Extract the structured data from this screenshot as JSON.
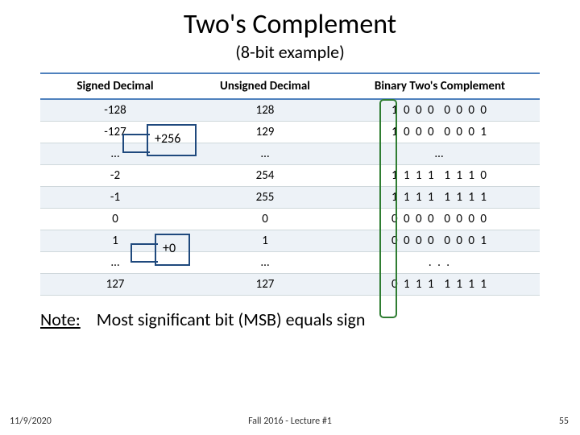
{
  "title": "Two's Complement",
  "subtitle": "(8-bit example)",
  "columns": [
    "Signed Decimal",
    "Unsigned Decimal",
    "Binary Two's Complement"
  ],
  "rows": [
    {
      "signed": "-128",
      "unsigned": "128",
      "binary": "1 0 0 0  0 0 0 0",
      "band": true
    },
    {
      "signed": "-127",
      "unsigned": "129",
      "binary": "1 0 0 0  0 0 0 1",
      "band": false
    },
    {
      "signed": "…",
      "unsigned": "…",
      "binary": "…",
      "band": true
    },
    {
      "signed": "-2",
      "unsigned": "254",
      "binary": "1 1 1 1  1 1 1 0",
      "band": false
    },
    {
      "signed": "-1",
      "unsigned": "255",
      "binary": "1 1 1 1  1 1 1 1",
      "band": true
    },
    {
      "signed": "0",
      "unsigned": "0",
      "binary": "0 0 0 0  0 0 0 0",
      "band": false
    },
    {
      "signed": "1",
      "unsigned": "1",
      "binary": "0 0 0 0  0 0 0 1",
      "band": true
    },
    {
      "signed": "…",
      "unsigned": "…",
      "binary": ". . .",
      "band": false
    },
    {
      "signed": "127",
      "unsigned": "127",
      "binary": "0 1 1 1  1 1 1 1",
      "band": true
    }
  ],
  "annotations": {
    "offset_neg": "+256",
    "offset_pos": "+0"
  },
  "note": {
    "label": "Note:",
    "text": "Most significant bit (MSB) equals sign"
  },
  "footer": {
    "date": "11/9/2020",
    "center": "Fall 2016 - Lecture #1",
    "page": "55"
  },
  "styling": {
    "header_border_color": "#4f81bd",
    "row_band_color": "#edf2f7",
    "annotation_border_color": "#1f497d",
    "msb_box_color": "#2f7d32",
    "title_fontsize": 34,
    "subtitle_fontsize": 22,
    "cell_fontsize": 15,
    "note_fontsize": 22,
    "footer_fontsize": 12
  }
}
